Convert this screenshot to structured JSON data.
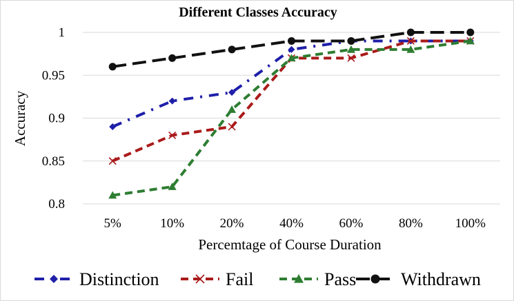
{
  "chart_data": {
    "type": "line",
    "title": "Different Classes Accuracy",
    "xlabel": "Percemtage of Course Duration",
    "ylabel": "Accuracy",
    "categories": [
      "5%",
      "10%",
      "20%",
      "40%",
      "60%",
      "80%",
      "100%"
    ],
    "ylim": [
      0.8,
      1.0
    ],
    "yticks": [
      0.8,
      0.85,
      0.9,
      0.95,
      1
    ],
    "ytick_labels": [
      "0.8",
      "0.85",
      "0.9",
      "0.95",
      "1"
    ],
    "grid": "horizontal",
    "legend_position": "bottom",
    "series": [
      {
        "name": "Distinction",
        "values": [
          0.89,
          0.92,
          0.93,
          0.98,
          0.99,
          0.99,
          0.99
        ],
        "color": "#1f1faa",
        "dash": "dash-dot",
        "marker": "diamond"
      },
      {
        "name": "Fail",
        "values": [
          0.85,
          0.88,
          0.89,
          0.97,
          0.97,
          0.99,
          0.99
        ],
        "color": "#aa1a1a",
        "dash": "dash",
        "marker": "x"
      },
      {
        "name": "Pass",
        "values": [
          0.81,
          0.82,
          0.91,
          0.97,
          0.98,
          0.98,
          0.99
        ],
        "color": "#2e7d32",
        "dash": "dash",
        "marker": "triangle"
      },
      {
        "name": "Withdrawn",
        "values": [
          0.96,
          0.97,
          0.98,
          0.99,
          0.99,
          1.0,
          1.0
        ],
        "color": "#111111",
        "dash": "long-dash",
        "marker": "circle"
      }
    ]
  }
}
